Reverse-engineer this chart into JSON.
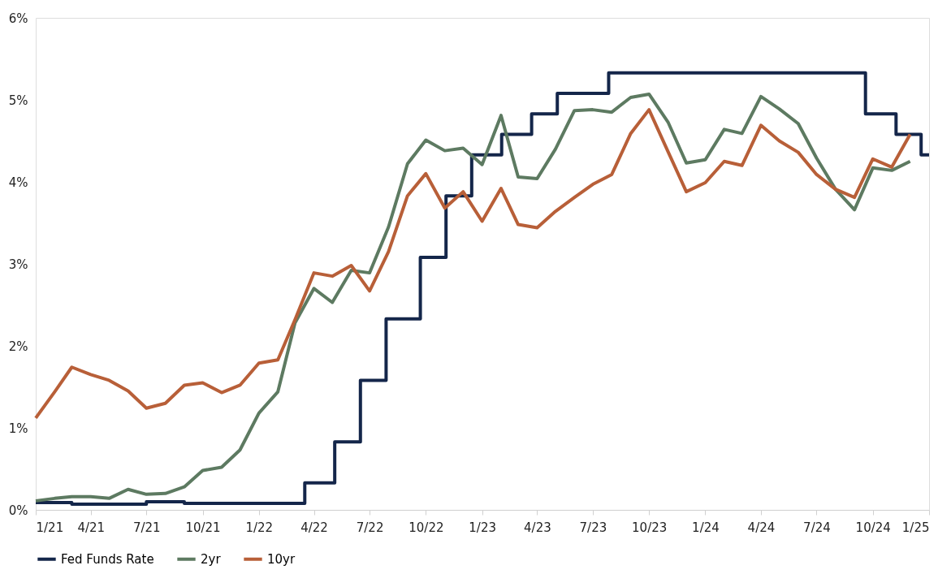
{
  "chart_data": {
    "type": "line",
    "x": [
      "2021-01",
      "2021-02",
      "2021-03",
      "2021-04",
      "2021-05",
      "2021-06",
      "2021-07",
      "2021-08",
      "2021-09",
      "2021-10",
      "2021-11",
      "2021-12",
      "2022-01",
      "2022-02",
      "2022-03",
      "2022-04",
      "2022-05",
      "2022-06",
      "2022-07",
      "2022-08",
      "2022-09",
      "2022-10",
      "2022-11",
      "2022-12",
      "2023-01",
      "2023-02",
      "2023-03",
      "2023-04",
      "2023-05",
      "2023-06",
      "2023-07",
      "2023-08",
      "2023-09",
      "2023-10",
      "2023-11",
      "2023-12",
      "2024-01",
      "2024-02",
      "2024-03",
      "2024-04",
      "2024-05",
      "2024-06",
      "2024-07",
      "2024-08",
      "2024-09",
      "2024-10",
      "2024-11",
      "2024-12"
    ],
    "series": [
      {
        "name": "Fed Funds Rate",
        "color": "#14264a",
        "type": "step",
        "x": [
          "2021-01",
          "2021-03",
          "2021-07",
          "2021-09",
          "2022-03-17",
          "2022-05-05",
          "2022-06-16",
          "2022-07-28",
          "2022-09-22",
          "2022-11-03",
          "2022-12-15",
          "2023-02-02",
          "2023-03-23",
          "2023-05-04",
          "2023-07-27",
          "2024-09-19",
          "2024-11-08",
          "2024-12-19",
          "2025-01"
        ],
        "values": [
          0.09,
          0.07,
          0.1,
          0.08,
          0.33,
          0.83,
          1.58,
          2.33,
          3.08,
          3.83,
          4.33,
          4.58,
          4.83,
          5.08,
          5.33,
          4.83,
          4.58,
          4.33,
          4.33
        ]
      },
      {
        "name": "2yr",
        "color": "#5d7a61",
        "values": [
          0.11,
          0.14,
          0.16,
          0.16,
          0.14,
          0.25,
          0.19,
          0.2,
          0.28,
          0.48,
          0.52,
          0.73,
          1.18,
          1.44,
          2.28,
          2.7,
          2.53,
          2.92,
          2.89,
          3.45,
          4.22,
          4.51,
          4.38,
          4.41,
          4.21,
          4.81,
          4.06,
          4.04,
          4.4,
          4.87,
          4.88,
          4.85,
          5.03,
          5.07,
          4.73,
          4.23,
          4.27,
          4.64,
          4.59,
          5.04,
          4.89,
          4.71,
          4.29,
          3.91,
          3.66,
          4.17,
          4.14,
          4.25
        ]
      },
      {
        "name": "10yr",
        "color": "#b85f38",
        "values": [
          1.12,
          1.44,
          1.74,
          1.65,
          1.58,
          1.45,
          1.24,
          1.3,
          1.52,
          1.55,
          1.43,
          1.52,
          1.79,
          1.83,
          2.32,
          2.89,
          2.85,
          2.98,
          2.67,
          3.15,
          3.83,
          4.1,
          3.68,
          3.88,
          3.52,
          3.92,
          3.48,
          3.44,
          3.64,
          3.81,
          3.97,
          4.09,
          4.59,
          4.88,
          4.37,
          3.88,
          3.99,
          4.25,
          4.2,
          4.69,
          4.5,
          4.36,
          4.09,
          3.91,
          3.81,
          4.28,
          4.18,
          4.58
        ]
      }
    ],
    "xlim": [
      "2021-01",
      "2025-01"
    ],
    "xticks": [
      {
        "value": "2021-01",
        "label": "1/21"
      },
      {
        "value": "2021-04",
        "label": "4/21"
      },
      {
        "value": "2021-07",
        "label": "7/21"
      },
      {
        "value": "2021-10",
        "label": "10/21"
      },
      {
        "value": "2022-01",
        "label": "1/22"
      },
      {
        "value": "2022-04",
        "label": "4/22"
      },
      {
        "value": "2022-07",
        "label": "7/22"
      },
      {
        "value": "2022-10",
        "label": "10/22"
      },
      {
        "value": "2023-01",
        "label": "1/23"
      },
      {
        "value": "2023-04",
        "label": "4/23"
      },
      {
        "value": "2023-07",
        "label": "7/23"
      },
      {
        "value": "2023-10",
        "label": "10/23"
      },
      {
        "value": "2024-01",
        "label": "1/24"
      },
      {
        "value": "2024-04",
        "label": "4/24"
      },
      {
        "value": "2024-07",
        "label": "7/24"
      },
      {
        "value": "2024-10",
        "label": "10/24"
      },
      {
        "value": "2025-01",
        "label": "1/25"
      }
    ],
    "ylim": [
      0,
      6
    ],
    "yticks": [
      {
        "value": 0,
        "label": "0%"
      },
      {
        "value": 1,
        "label": "1%"
      },
      {
        "value": 2,
        "label": "2%"
      },
      {
        "value": 3,
        "label": "3%"
      },
      {
        "value": 4,
        "label": "4%"
      },
      {
        "value": 5,
        "label": "5%"
      },
      {
        "value": 6,
        "label": "6%"
      }
    ],
    "grid": false,
    "legend": "bottom"
  }
}
